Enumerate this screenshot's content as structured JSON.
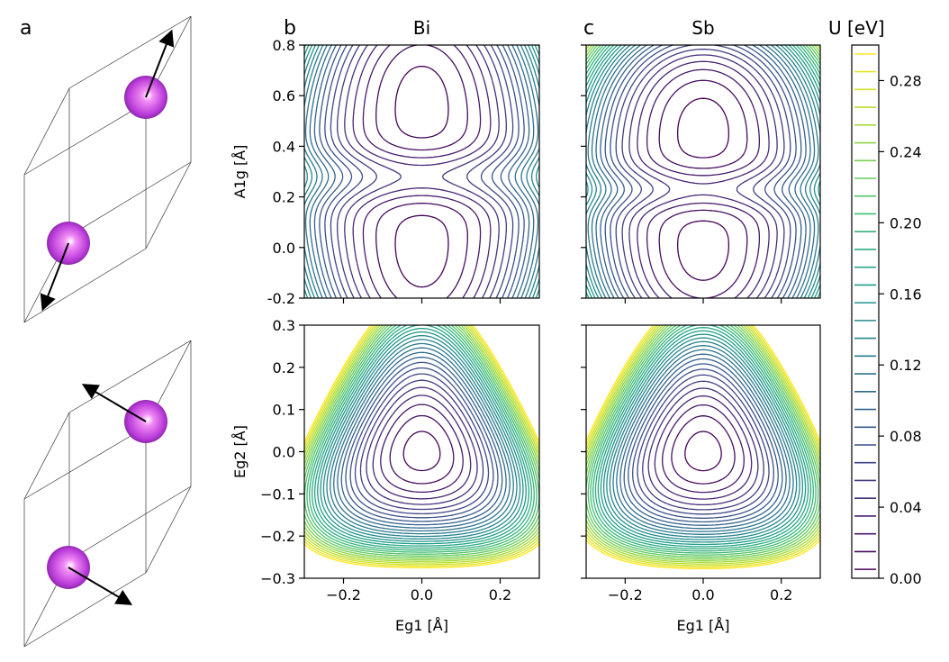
{
  "panel_letters": [
    "a",
    "b",
    "c"
  ],
  "structure_panel": {
    "atom_color": "#b93bd9",
    "rows": [
      {
        "atoms": [
          {
            "arrow": [
              0.35,
              -0.9
            ]
          },
          {
            "arrow": [
              -0.35,
              0.9
            ]
          }
        ]
      },
      {
        "atoms": [
          {
            "arrow": [
              -0.85,
              -0.5
            ]
          },
          {
            "arrow": [
              0.85,
              0.5
            ]
          }
        ]
      }
    ]
  },
  "colorbar": {
    "title": "U [eV]",
    "min": 0.0,
    "max": 0.3,
    "levels": 30,
    "tick_values": [
      0.0,
      0.04,
      0.08,
      0.12,
      0.16,
      0.2,
      0.24,
      0.28
    ],
    "tick_labels": [
      "0.00",
      "0.04",
      "0.08",
      "0.12",
      "0.16",
      "0.20",
      "0.24",
      "0.28"
    ],
    "colormap": "viridis"
  },
  "chart_data": [
    {
      "type": "contour",
      "panel": "b",
      "title": "Bi",
      "xlabel": "",
      "ylabel": "A1g [Å]",
      "xlim": [
        -0.3,
        0.3
      ],
      "ylim": [
        -0.2,
        0.8
      ],
      "x_ticks": [
        -0.2,
        0.0,
        0.2
      ],
      "x_tick_labels": [],
      "y_ticks": [
        -0.2,
        0.0,
        0.2,
        0.4,
        0.6,
        0.8
      ],
      "y_tick_labels": [
        "-0.2",
        "0.0",
        "0.2",
        "0.4",
        "0.6",
        "0.8"
      ],
      "minima": [
        {
          "x": 0.0,
          "y": 0.0
        },
        {
          "x": 0.0,
          "y": 0.56
        }
      ],
      "saddle": {
        "x": 0.0,
        "y": 0.28
      }
    },
    {
      "type": "contour",
      "panel": "c",
      "title": "Sb",
      "xlabel": "",
      "ylabel": "",
      "xlim": [
        -0.3,
        0.3
      ],
      "ylim": [
        -0.2,
        0.8
      ],
      "x_ticks": [
        -0.2,
        0.0,
        0.2
      ],
      "x_tick_labels": [],
      "y_ticks": [
        -0.2,
        0.0,
        0.2,
        0.4,
        0.6,
        0.8
      ],
      "y_tick_labels": [],
      "minima": [
        {
          "x": 0.0,
          "y": 0.0
        },
        {
          "x": 0.0,
          "y": 0.46
        }
      ],
      "saddle": {
        "x": 0.0,
        "y": 0.23
      }
    },
    {
      "type": "contour",
      "panel": "b-lower",
      "title": "",
      "xlabel": "Eg1 [Å]",
      "ylabel": "Eg2 [Å]",
      "xlim": [
        -0.3,
        0.3
      ],
      "ylim": [
        -0.3,
        0.3
      ],
      "x_ticks": [
        -0.2,
        0.0,
        0.2
      ],
      "x_tick_labels": [
        "−0.2",
        "0.0",
        "0.2"
      ],
      "y_ticks": [
        -0.3,
        -0.2,
        -0.1,
        0.0,
        0.1,
        0.2,
        0.3
      ],
      "y_tick_labels": [
        "−0.3",
        "−0.2",
        "−0.1",
        "0.0",
        "0.1",
        "0.2",
        "0.3"
      ],
      "minima": [
        {
          "x": 0.0,
          "y": 0.0
        }
      ]
    },
    {
      "type": "contour",
      "panel": "c-lower",
      "title": "",
      "xlabel": "Eg1 [Å]",
      "ylabel": "",
      "xlim": [
        -0.3,
        0.3
      ],
      "ylim": [
        -0.3,
        0.3
      ],
      "x_ticks": [
        -0.2,
        0.0,
        0.2
      ],
      "x_tick_labels": [
        "−0.2",
        "0.0",
        "0.2"
      ],
      "y_ticks": [
        -0.3,
        -0.2,
        -0.1,
        0.0,
        0.1,
        0.2,
        0.3
      ],
      "y_tick_labels": [],
      "minima": [
        {
          "x": 0.0,
          "y": 0.0
        }
      ]
    }
  ]
}
